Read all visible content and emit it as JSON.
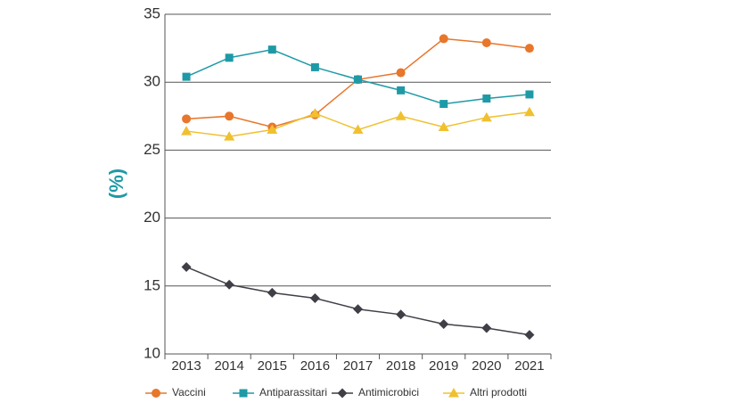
{
  "chart_data": {
    "type": "line",
    "y_label": "(%)",
    "categories": [
      "2013",
      "2014",
      "2015",
      "2016",
      "2017",
      "2018",
      "2019",
      "2020",
      "2021"
    ],
    "series": [
      {
        "name": "Vaccini",
        "color": "#e8762b",
        "marker": "circle",
        "values": [
          27.3,
          27.5,
          26.7,
          27.6,
          30.2,
          30.7,
          33.2,
          32.9,
          32.5
        ]
      },
      {
        "name": "Antiparassitari",
        "color": "#1e9aa6",
        "marker": "square",
        "values": [
          30.4,
          31.8,
          32.4,
          31.1,
          30.2,
          29.4,
          28.4,
          28.8,
          29.1
        ]
      },
      {
        "name": "Antimicrobici",
        "color": "#3f3f47",
        "marker": "diamond",
        "values": [
          16.4,
          15.1,
          14.5,
          14.1,
          13.3,
          12.9,
          12.2,
          11.9,
          11.4
        ]
      },
      {
        "name": "Altri prodotti",
        "color": "#f0c030",
        "marker": "triangle",
        "values": [
          26.4,
          26.0,
          26.5,
          27.7,
          26.5,
          27.5,
          26.7,
          27.4,
          27.8
        ]
      }
    ],
    "ylim": [
      10,
      35
    ],
    "yticks": [
      10,
      15,
      20,
      25,
      30,
      35
    ],
    "grid": true
  }
}
